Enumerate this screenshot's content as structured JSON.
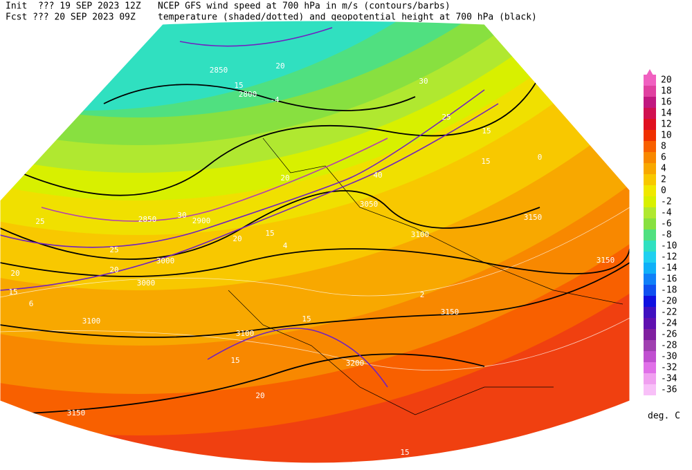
{
  "header": {
    "init": "Init  ??? 19 SEP 2023 12Z",
    "fcst": "Fcst ??? 20 SEP 2023 09Z",
    "line1": "NCEP GFS wind speed at 700 hPa in m/s (contours/barbs)",
    "line2": "temperature (shaded/dotted) and geopotential height at 700 hPa (black)"
  },
  "colorbar": {
    "levels": [
      20,
      18,
      16,
      14,
      12,
      10,
      8,
      6,
      4,
      2,
      0,
      -2,
      -4,
      -6,
      -8,
      -10,
      -12,
      -14,
      -16,
      -18,
      -20,
      -22,
      -24,
      -26,
      -28,
      -30,
      -32,
      -34,
      -36
    ],
    "colors": [
      "#f060c0",
      "#e040a0",
      "#c01880",
      "#d01050",
      "#e01020",
      "#f03000",
      "#f86000",
      "#f88800",
      "#f8a800",
      "#f8c800",
      "#f0e800",
      "#d8f000",
      "#b0e830",
      "#88e040",
      "#50e080",
      "#30e0c0",
      "#20d0f0",
      "#10b0f8",
      "#1080f8",
      "#1050f0",
      "#1010e0",
      "#4010c0",
      "#6010b0",
      "#8020a0",
      "#a040b0",
      "#c050d0",
      "#e070e8",
      "#f0a0f0",
      "#f8c0f8"
    ],
    "unit": "deg. C"
  },
  "map_labels": [
    "3100",
    "3150",
    "3150",
    "3100",
    "3100",
    "3050",
    "3000",
    "3000",
    "2850",
    "2900",
    "2800",
    "2850",
    "3200",
    "3150",
    "3150",
    "15",
    "15",
    "20",
    "20",
    "20",
    "25",
    "25",
    "15",
    "20",
    "30",
    "40",
    "15",
    "25",
    "30",
    "15",
    "20",
    "15",
    "15",
    "20",
    "15",
    "4",
    "2",
    "0",
    "-4",
    "6"
  ]
}
